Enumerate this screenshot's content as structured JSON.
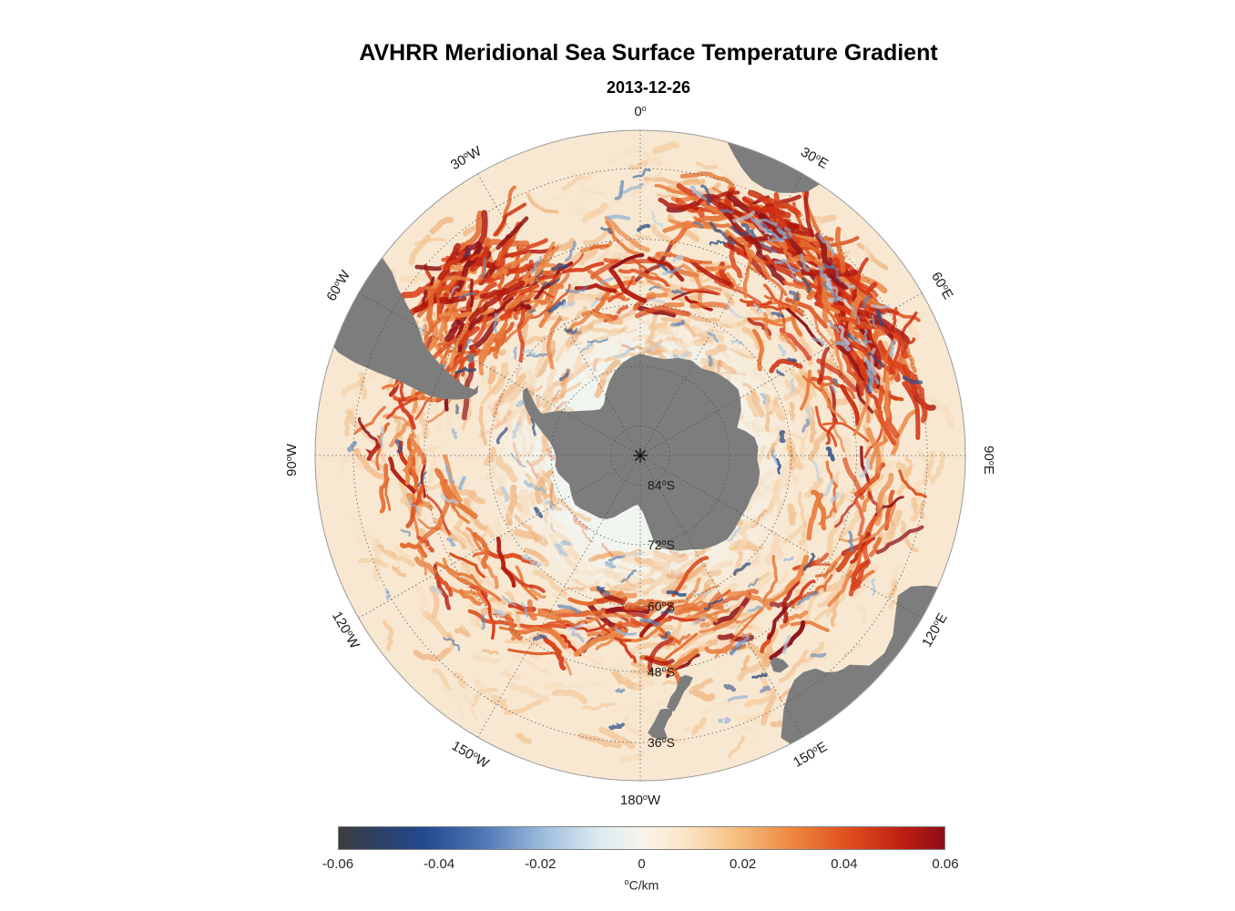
{
  "title": "AVHRR Meridional Sea Surface Temperature Gradient",
  "subtitle": "2013-12-26",
  "chart_data": {
    "type": "heatmap",
    "title": "AVHRR Meridional Sea Surface Temperature Gradient",
    "subtitle": "2013-12-26",
    "variable": "Meridional sea surface temperature gradient",
    "units_sup": "o",
    "units_text": "C/km",
    "projection": {
      "name": "south-polar-stereographic",
      "center": "South Pole",
      "outer_latitude_deg_s": 30,
      "graticule_meridian_step_deg": 30,
      "graticule_parallels_deg_s": [
        84,
        72,
        60,
        48,
        36
      ]
    },
    "colorbar": {
      "min": -0.06,
      "max": 0.06,
      "tick_values": [
        -0.06,
        -0.04,
        -0.02,
        0,
        0.02,
        0.04,
        0.06
      ],
      "tick_labels": [
        "-0.06",
        "-0.04",
        "-0.02",
        "0",
        "0.02",
        "0.04",
        "0.06"
      ],
      "gradient_stops": [
        {
          "pos": 0.0,
          "color": "#3c3c3c"
        },
        {
          "pos": 0.06,
          "color": "#2e3f63"
        },
        {
          "pos": 0.14,
          "color": "#23498e"
        },
        {
          "pos": 0.24,
          "color": "#4f78b6"
        },
        {
          "pos": 0.34,
          "color": "#9fbedd"
        },
        {
          "pos": 0.43,
          "color": "#dcebf0"
        },
        {
          "pos": 0.5,
          "color": "#f8f4ec"
        },
        {
          "pos": 0.57,
          "color": "#fbe6c8"
        },
        {
          "pos": 0.66,
          "color": "#f6bd7e"
        },
        {
          "pos": 0.76,
          "color": "#ec8038"
        },
        {
          "pos": 0.85,
          "color": "#dc4a1d"
        },
        {
          "pos": 0.93,
          "color": "#c01f12"
        },
        {
          "pos": 1.0,
          "color": "#8c0f16"
        }
      ]
    },
    "meridian_labels": [
      {
        "az": 0,
        "value": "0",
        "suffix": ""
      },
      {
        "az": 30,
        "value": "30",
        "suffix": "E"
      },
      {
        "az": 60,
        "value": "60",
        "suffix": "E"
      },
      {
        "az": 90,
        "value": "90",
        "suffix": "E"
      },
      {
        "az": 120,
        "value": "120",
        "suffix": "E"
      },
      {
        "az": 150,
        "value": "150",
        "suffix": "E"
      },
      {
        "az": 180,
        "value": "180",
        "suffix": "W"
      },
      {
        "az": -150,
        "value": "150",
        "suffix": "W"
      },
      {
        "az": -120,
        "value": "120",
        "suffix": "W"
      },
      {
        "az": -90,
        "value": "90",
        "suffix": "W"
      },
      {
        "az": -60,
        "value": "60",
        "suffix": "W"
      },
      {
        "az": -30,
        "value": "30",
        "suffix": "W"
      }
    ],
    "parallel_labels": [
      {
        "lat": 84,
        "value": "84",
        "suffix": "S"
      },
      {
        "lat": 72,
        "value": "72",
        "suffix": "S"
      },
      {
        "lat": 60,
        "value": "60",
        "suffix": "S"
      },
      {
        "lat": 48,
        "value": "48",
        "suffix": "S"
      },
      {
        "lat": 36,
        "value": "36",
        "suffix": "S"
      }
    ],
    "pole_marker": "*"
  },
  "map": {
    "colors": {
      "land": "#7d7d7d",
      "graticule": "#4a4a4a",
      "outer_ring": "#9a9a9a",
      "ocean_inner": "#f1f5f0",
      "ocean_mid": "#f5efe2",
      "ocean_outer": "#f8e8d2",
      "filament_light": [
        "#f7d9b8",
        "#f3c493",
        "#efb27b",
        "#f6e2c9"
      ],
      "filament_warm": [
        "#eb8a4a",
        "#e36a2e",
        "#dd4f1f",
        "#e87c3c"
      ],
      "filament_hot": [
        "#cf2f12",
        "#b31a0e",
        "#8f1218",
        "#d93c18"
      ],
      "filament_cool": [
        "#b8cce0",
        "#8fb0d3",
        "#5d82b4",
        "#2f4f86"
      ]
    },
    "land": [
      {
        "name": "antarctica",
        "points": [
          [
            0,
            69.5
          ],
          [
            7,
            70
          ],
          [
            14,
            70
          ],
          [
            21,
            69
          ],
          [
            28,
            68.3
          ],
          [
            35,
            68.6
          ],
          [
            42,
            67.5
          ],
          [
            49,
            66.8
          ],
          [
            56,
            66.3
          ],
          [
            61,
            67
          ],
          [
            66,
            67.8
          ],
          [
            70,
            68.8
          ],
          [
            74,
            69.7
          ],
          [
            77,
            68.3
          ],
          [
            81,
            66.8
          ],
          [
            86,
            66.3
          ],
          [
            92,
            66.5
          ],
          [
            98,
            65.8
          ],
          [
            104,
            65.7
          ],
          [
            110,
            66.2
          ],
          [
            116,
            66.2
          ],
          [
            122,
            66.3
          ],
          [
            128,
            66
          ],
          [
            134,
            65.8
          ],
          [
            140,
            66.5
          ],
          [
            146,
            67.3
          ],
          [
            152,
            68.6
          ],
          [
            158,
            69.3
          ],
          [
            164,
            70.4
          ],
          [
            168,
            71
          ],
          [
            171,
            72.4
          ],
          [
            174,
            76
          ],
          [
            177,
            78.3
          ],
          [
            180,
            79.3
          ],
          [
            -177,
            80
          ],
          [
            -172,
            79.6
          ],
          [
            -167,
            78.8
          ],
          [
            -162,
            77.8
          ],
          [
            -157,
            76.4
          ],
          [
            -152,
            75.4
          ],
          [
            -147,
            74.9
          ],
          [
            -142,
            74.7
          ],
          [
            -137,
            74.4
          ],
          [
            -132,
            73.9
          ],
          [
            -127,
            73.5
          ],
          [
            -122,
            73.8
          ],
          [
            -117,
            74.2
          ],
          [
            -112,
            74.5
          ],
          [
            -107,
            73.8
          ],
          [
            -102,
            73
          ],
          [
            -97,
            72.7
          ],
          [
            -92,
            73
          ],
          [
            -87,
            72.6
          ],
          [
            -82,
            71.7
          ],
          [
            -78,
            70.3
          ],
          [
            -74,
            68.5
          ],
          [
            -70,
            66.3
          ],
          [
            -67,
            64.9
          ],
          [
            -64,
            63.9
          ],
          [
            -61,
            63.2
          ],
          [
            -59,
            63.6
          ],
          [
            -61,
            64.8
          ],
          [
            -63,
            66
          ],
          [
            -65.5,
            67.3
          ],
          [
            -67,
            68.5
          ],
          [
            -64,
            70
          ],
          [
            -61,
            71.4
          ],
          [
            -59,
            72.8
          ],
          [
            -56,
            74
          ],
          [
            -52,
            75.3
          ],
          [
            -47,
            76.6
          ],
          [
            -41,
            77.6
          ],
          [
            -35,
            77.2
          ],
          [
            -29,
            75.6
          ],
          [
            -23,
            73.9
          ],
          [
            -17,
            72.3
          ],
          [
            -11,
            71
          ],
          [
            -5,
            70.1
          ]
        ]
      },
      {
        "name": "south-america",
        "points": [
          [
            -70.5,
            30
          ],
          [
            -66,
            30
          ],
          [
            -61,
            30
          ],
          [
            -56,
            30
          ],
          [
            -52.5,
            30
          ],
          [
            -53.5,
            32.5
          ],
          [
            -55.5,
            35
          ],
          [
            -57.5,
            38
          ],
          [
            -58.5,
            39.5
          ],
          [
            -60.5,
            41.5
          ],
          [
            -62.5,
            43
          ],
          [
            -64,
            45
          ],
          [
            -65.3,
            47
          ],
          [
            -66.5,
            49
          ],
          [
            -67.5,
            51
          ],
          [
            -68.5,
            53
          ],
          [
            -68.3,
            54.8
          ],
          [
            -66.5,
            55.2
          ],
          [
            -69,
            55.6
          ],
          [
            -71.5,
            54.5
          ],
          [
            -73,
            52.5
          ],
          [
            -74,
            50
          ],
          [
            -74.2,
            47.5
          ],
          [
            -73.5,
            44.5
          ],
          [
            -72.8,
            41.5
          ],
          [
            -72.5,
            38
          ],
          [
            -72,
            34
          ],
          [
            -71.2,
            31
          ]
        ]
      },
      {
        "name": "falkland-islands",
        "points": [
          [
            -61.2,
            51.3
          ],
          [
            -59.2,
            51.1
          ],
          [
            -58.2,
            51.8
          ],
          [
            -59.8,
            52.3
          ],
          [
            -61.4,
            52.1
          ]
        ]
      },
      {
        "name": "south-georgia",
        "points": [
          [
            -38.2,
            54.1
          ],
          [
            -36,
            54.3
          ],
          [
            -35.6,
            54.9
          ],
          [
            -37.6,
            54.7
          ]
        ]
      },
      {
        "name": "africa-southern-tip",
        "points": [
          [
            15.5,
            30
          ],
          [
            20,
            30
          ],
          [
            25,
            30
          ],
          [
            30,
            30
          ],
          [
            33.5,
            30
          ],
          [
            32.5,
            31.8
          ],
          [
            30.5,
            33.2
          ],
          [
            27.8,
            34.4
          ],
          [
            25,
            34.8
          ],
          [
            22,
            34.4
          ],
          [
            19.5,
            33.2
          ],
          [
            17.3,
            31.6
          ]
        ]
      },
      {
        "name": "australia",
        "points": [
          [
            113.8,
            30
          ],
          [
            120,
            30
          ],
          [
            127,
            30
          ],
          [
            134,
            30
          ],
          [
            141,
            30
          ],
          [
            147,
            30
          ],
          [
            152.5,
            30
          ],
          [
            153.5,
            31.5
          ],
          [
            152,
            33.5
          ],
          [
            150.5,
            35.3
          ],
          [
            148,
            37.2
          ],
          [
            145.5,
            38.4
          ],
          [
            143,
            38.6
          ],
          [
            140.5,
            37.8
          ],
          [
            139.5,
            36.3
          ],
          [
            137.8,
            35.2
          ],
          [
            136.5,
            34.8
          ],
          [
            135,
            34.6
          ],
          [
            132.5,
            32.2
          ],
          [
            129,
            31.7
          ],
          [
            125.5,
            32.3
          ],
          [
            122,
            33.8
          ],
          [
            118.5,
            35
          ],
          [
            115.8,
            33.8
          ],
          [
            114.5,
            31.8
          ]
        ]
      },
      {
        "name": "tasmania",
        "points": [
          [
            144.8,
            40.8
          ],
          [
            147.2,
            40.7
          ],
          [
            148.3,
            41.5
          ],
          [
            147.8,
            43.2
          ],
          [
            146.3,
            43.5
          ],
          [
            145,
            42.2
          ]
        ]
      },
      {
        "name": "new-zealand-south-island",
        "points": [
          [
            166.6,
            45.9
          ],
          [
            168.3,
            46.6
          ],
          [
            169.8,
            46.4
          ],
          [
            171.4,
            44.3
          ],
          [
            172.8,
            43.3
          ],
          [
            174,
            41.6
          ],
          [
            172.5,
            40.7
          ],
          [
            171.2,
            42
          ],
          [
            169.5,
            43.8
          ],
          [
            167.8,
            44.8
          ]
        ]
      },
      {
        "name": "new-zealand-north-island",
        "points": [
          [
            172.8,
            41.2
          ],
          [
            174.6,
            41.4
          ],
          [
            175.5,
            41.3
          ],
          [
            177,
            39.3
          ],
          [
            178.5,
            37.6
          ],
          [
            177.5,
            36.8
          ],
          [
            175.8,
            36.3
          ],
          [
            174.5,
            36.5
          ],
          [
            175,
            38
          ],
          [
            174,
            39.5
          ],
          [
            173,
            40.3
          ]
        ]
      },
      {
        "name": "kerguelen",
        "points": [
          [
            68.5,
            49.8
          ],
          [
            70.3,
            49.6
          ],
          [
            70.5,
            49.1
          ],
          [
            69,
            48.9
          ],
          [
            68.2,
            49.3
          ]
        ]
      }
    ]
  }
}
